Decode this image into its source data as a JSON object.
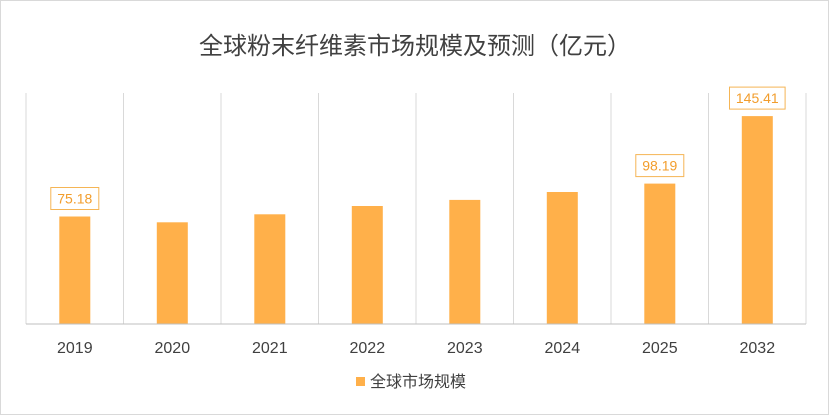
{
  "chart_data": {
    "type": "bar",
    "title": "全球粉末纤维素市场规模及预测（亿元）",
    "xlabel": "",
    "ylabel": "",
    "categories": [
      "2019",
      "2020",
      "2021",
      "2022",
      "2023",
      "2024",
      "2025",
      "2032"
    ],
    "series": [
      {
        "name": "全球市场规模",
        "values": [
          75.18,
          71.1,
          76.7,
          82.5,
          86.8,
          92.3,
          98.19,
          145.41
        ]
      }
    ],
    "data_labels": [
      "75.18",
      "",
      "",
      "",
      "",
      "",
      "98.19",
      "145.41"
    ],
    "ylim": [
      0,
      150
    ],
    "grid": "vertical",
    "legend_position": "bottom",
    "colors": {
      "bar": "#ffb04a",
      "label_border": "#f5b555",
      "label_text": "#f29d2c",
      "grid": "#d9d9d9",
      "axis": "#bfbfbf"
    }
  }
}
